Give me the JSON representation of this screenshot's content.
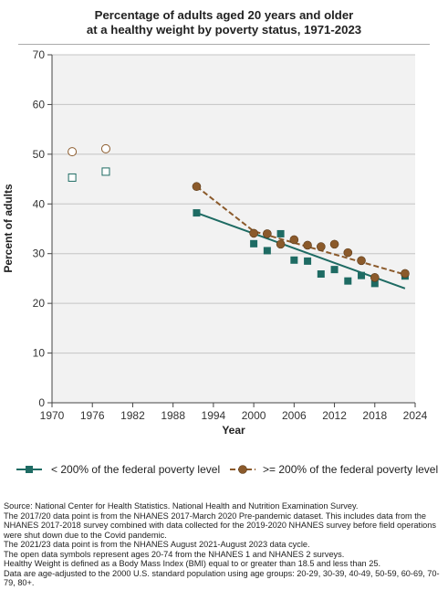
{
  "chart_data": {
    "type": "scatter",
    "title_lines": [
      "Percentage of adults aged 20 years and older",
      "at a healthy weight by poverty status, 1971-2023"
    ],
    "xlabel": "Year",
    "ylabel": "Percent of adults",
    "xlim": [
      1970,
      2024
    ],
    "ylim": [
      0,
      70
    ],
    "xticks": [
      1970,
      1976,
      1982,
      1988,
      1994,
      2000,
      2006,
      2012,
      2018,
      2024
    ],
    "yticks": [
      0,
      10,
      20,
      30,
      40,
      50,
      60,
      70
    ],
    "grid": "horizontal",
    "legend_position": "bottom",
    "series": [
      {
        "name": "< 200% of the federal poverty level",
        "marker": "square",
        "color": "#1e6b63",
        "open_points": [
          {
            "x": 1973,
            "y": 45.3
          },
          {
            "x": 1978,
            "y": 46.5
          }
        ],
        "points": [
          {
            "x": 1991.5,
            "y": 38.2
          },
          {
            "x": 2000,
            "y": 32.0
          },
          {
            "x": 2002,
            "y": 30.6
          },
          {
            "x": 2004,
            "y": 34.0
          },
          {
            "x": 2006,
            "y": 28.7
          },
          {
            "x": 2008,
            "y": 28.5
          },
          {
            "x": 2010,
            "y": 25.9
          },
          {
            "x": 2012,
            "y": 26.8
          },
          {
            "x": 2014,
            "y": 24.5
          },
          {
            "x": 2016,
            "y": 25.6
          },
          {
            "x": 2018,
            "y": 24.0
          },
          {
            "x": 2022.5,
            "y": 25.5
          }
        ],
        "trend": {
          "x": [
            1991.5,
            2022.5
          ],
          "y": [
            38.2,
            23.0
          ],
          "style": "solid"
        }
      },
      {
        "name": ">= 200% of the federal poverty level",
        "marker": "circle",
        "color": "#8b5a2b",
        "open_points": [
          {
            "x": 1973,
            "y": 50.5
          },
          {
            "x": 1978,
            "y": 51.1
          }
        ],
        "points": [
          {
            "x": 1991.5,
            "y": 43.5
          },
          {
            "x": 2000,
            "y": 34.1
          },
          {
            "x": 2002,
            "y": 34.0
          },
          {
            "x": 2004,
            "y": 31.9
          },
          {
            "x": 2006,
            "y": 32.8
          },
          {
            "x": 2008,
            "y": 31.7
          },
          {
            "x": 2010,
            "y": 31.4
          },
          {
            "x": 2012,
            "y": 31.9
          },
          {
            "x": 2014,
            "y": 30.2
          },
          {
            "x": 2016,
            "y": 28.6
          },
          {
            "x": 2018,
            "y": 25.2
          },
          {
            "x": 2022.5,
            "y": 26.0
          }
        ],
        "trend": {
          "x": [
            1991.5,
            2000,
            2022.5
          ],
          "y": [
            43.5,
            34.5,
            25.8
          ],
          "style": "dashed"
        }
      }
    ]
  },
  "notes": [
    "Source: National Center for Health Statistics. National Health and Nutrition Examination Survey.",
    "The 2017/20 data point is from the NHANES 2017-March 2020 Pre-pandemic dataset. This includes data from the NHANES 2017-2018 survey combined with data collected for the 2019-2020 NHANES survey before field operations were shut down due to the Covid pandemic.",
    "The 2021/23 data point is from the NHANES August 2021-August 2023 data cycle.",
    "The open data symbols represent ages 20-74 from the NHANES 1 and NHANES 2 surveys.",
    "Healthy Weight is defined as a Body Mass Index (BMI) equal to or greater than 18.5 and less than 25.",
    "Data are age-adjusted to the 2000 U.S. standard population using age groups: 20-29, 30-39, 40-49, 50-59, 60-69, 70-79, 80+."
  ]
}
